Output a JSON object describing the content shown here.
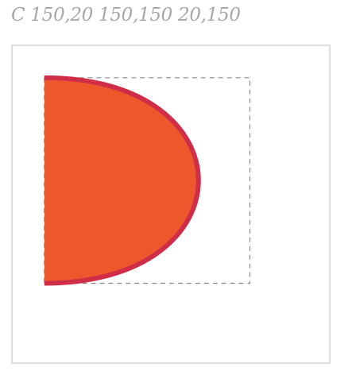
{
  "path_command_label": "C 150,20 150,150 20,150",
  "curve": {
    "start": [
      20,
      20
    ],
    "control_1": [
      150,
      20
    ],
    "control_2": [
      150,
      150
    ],
    "end": [
      20,
      150
    ],
    "fill_color": "#ec582c",
    "stroke_color": "#cf2d48"
  },
  "bounding_guide": {
    "min": [
      20,
      20
    ],
    "max": [
      150,
      150
    ],
    "stroke_color": "#8a8a8a"
  }
}
